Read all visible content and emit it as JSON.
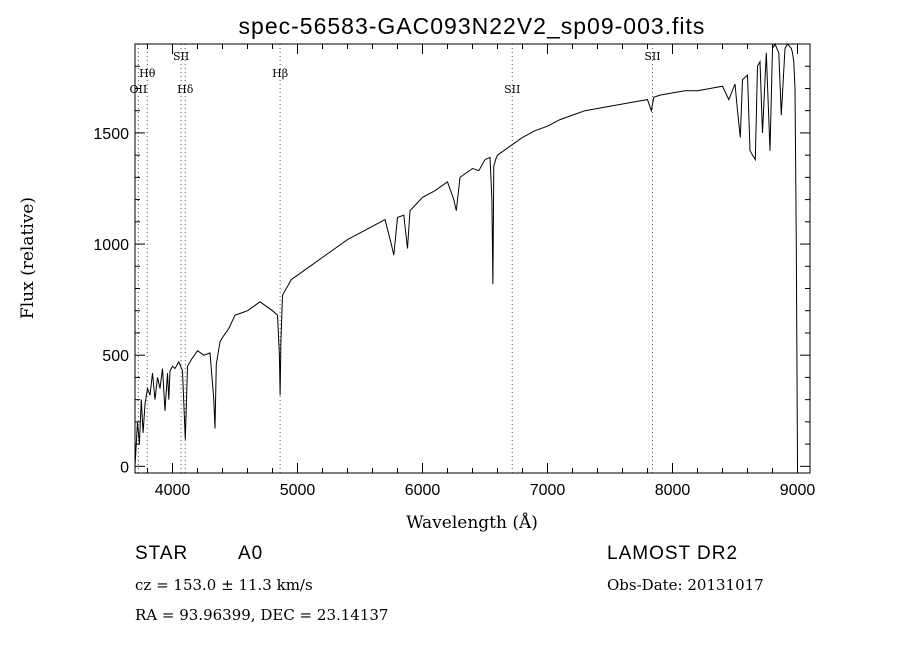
{
  "chart_data": {
    "type": "line",
    "title": "spec-56583-GAC093N22V2_sp09-003.fits",
    "xlabel": "Wavelength (Å)",
    "ylabel": "Flux (relative)",
    "xlim": [
      3700,
      9100
    ],
    "ylim": [
      -30,
      1900
    ],
    "x_ticks": [
      4000,
      5000,
      6000,
      7000,
      8000,
      9000
    ],
    "x_tick_labels": [
      "4000",
      "5000",
      "6000",
      "7000",
      "8000",
      "9000"
    ],
    "y_ticks": [
      0,
      500,
      1000,
      1500
    ],
    "y_tick_labels": [
      "0",
      "500",
      "1000",
      "1500"
    ],
    "grid": false,
    "line_markers": [
      {
        "name": "OII",
        "x": 3727
      },
      {
        "name": "Hθ",
        "x": 3798
      },
      {
        "name": "SII",
        "x": 4069
      },
      {
        "name": "Hδ",
        "x": 4102
      },
      {
        "name": "Hβ",
        "x": 4861
      },
      {
        "name": "SII",
        "x": 6718
      },
      {
        "name": "SII",
        "x": 7840
      }
    ],
    "series": [
      {
        "x": [
          3700,
          3720,
          3735,
          3750,
          3765,
          3780,
          3800,
          3820,
          3840,
          3860,
          3880,
          3900,
          3920,
          3940,
          3960,
          3970,
          3980,
          4000,
          4020,
          4050,
          4080,
          4102,
          4120,
          4150,
          4200,
          4250,
          4300,
          4330,
          4340,
          4350,
          4380,
          4400,
          4450,
          4500,
          4550,
          4600,
          4650,
          4700,
          4750,
          4800,
          4840,
          4855,
          4861,
          4867,
          4880,
          4900,
          4950,
          5000,
          5100,
          5200,
          5300,
          5400,
          5500,
          5600,
          5700,
          5750,
          5770,
          5800,
          5850,
          5880,
          5900,
          5950,
          6000,
          6100,
          6200,
          6250,
          6270,
          6300,
          6350,
          6400,
          6450,
          6500,
          6540,
          6555,
          6563,
          6570,
          6585,
          6600,
          6650,
          6700,
          6750,
          6800,
          6900,
          7000,
          7100,
          7200,
          7300,
          7400,
          7500,
          7600,
          7700,
          7800,
          7830,
          7850,
          7900,
          8000,
          8100,
          8200,
          8300,
          8400,
          8450,
          8500,
          8520,
          8542,
          8560,
          8600,
          8620,
          8662,
          8680,
          8700,
          8720,
          8750,
          8780,
          8800,
          8820,
          8850,
          8870,
          8900,
          8920,
          8950,
          8960,
          8970,
          8980,
          8990,
          9000
        ],
        "y": [
          0,
          200,
          100,
          300,
          150,
          280,
          350,
          320,
          420,
          300,
          400,
          350,
          440,
          250,
          420,
          300,
          430,
          450,
          440,
          470,
          430,
          120,
          450,
          480,
          520,
          500,
          510,
          300,
          170,
          460,
          560,
          580,
          620,
          680,
          690,
          700,
          720,
          740,
          720,
          700,
          680,
          500,
          320,
          560,
          770,
          790,
          840,
          860,
          900,
          940,
          980,
          1020,
          1050,
          1080,
          1110,
          1000,
          950,
          1120,
          1130,
          980,
          1150,
          1180,
          1210,
          1240,
          1280,
          1200,
          1150,
          1300,
          1320,
          1340,
          1330,
          1380,
          1390,
          1200,
          820,
          1350,
          1380,
          1400,
          1420,
          1440,
          1460,
          1480,
          1510,
          1530,
          1560,
          1580,
          1600,
          1610,
          1620,
          1630,
          1640,
          1650,
          1600,
          1660,
          1670,
          1680,
          1690,
          1690,
          1700,
          1710,
          1650,
          1720,
          1600,
          1480,
          1740,
          1760,
          1420,
          1380,
          1800,
          1820,
          1500,
          1860,
          1420,
          1880,
          1900,
          1860,
          1580,
          1880,
          1900,
          1880,
          1860,
          1820,
          1700,
          1000,
          0
        ]
      }
    ]
  },
  "info": {
    "class_label": "STAR",
    "subclass": "A0",
    "survey": "LAMOST DR2",
    "cz": "cz = 153.0 ± 11.3 km/s",
    "obs_date": "Obs-Date: 20131017",
    "radec": "RA =  93.96399, DEC =  23.14137"
  }
}
